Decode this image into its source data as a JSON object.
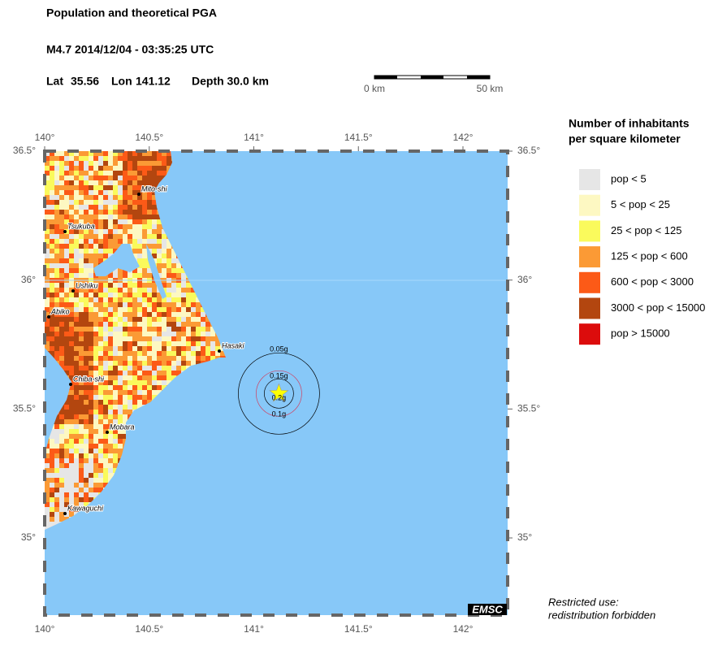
{
  "header": {
    "title": "Population and theoretical PGA",
    "event": "M4.7  2014/12/04 - 03:35:25 UTC",
    "lat_label": "Lat",
    "lat": 35.56,
    "lon_label": "Lon",
    "lon": 141.12,
    "depth": "Depth  30.0 km"
  },
  "scale_bar": {
    "start": "0 km",
    "end": "50 km"
  },
  "map": {
    "lon_ticks": [
      {
        "value": 140,
        "label": "140°"
      },
      {
        "value": 140.5,
        "label": "140.5°"
      },
      {
        "value": 141,
        "label": "141°"
      },
      {
        "value": 141.5,
        "label": "141.5°"
      },
      {
        "value": 142,
        "label": "142°"
      }
    ],
    "lat_ticks": [
      {
        "value": 36.5,
        "label": "36.5°"
      },
      {
        "value": 36,
        "label": "36°"
      },
      {
        "value": 35.5,
        "label": "35.5°"
      },
      {
        "value": 35,
        "label": "35°"
      }
    ],
    "cities": [
      "Mito-shi",
      "Tsukuba",
      "Ushiku",
      "Abiko",
      "Hasaki",
      "Chiba-shi",
      "Mobara",
      "Kawaguchi"
    ],
    "pga_labels": [
      "0.05g",
      "0.15g",
      "0.2g",
      "0.1g"
    ],
    "badge": "EMSC"
  },
  "legend": {
    "title": [
      "Number of inhabitants",
      "per square kilometer"
    ],
    "items": [
      {
        "label": "pop < 5",
        "color": "#e6e6e6"
      },
      {
        "label": "5 < pop < 25",
        "color": "#fdf8c2"
      },
      {
        "label": "25 < pop < 125",
        "color": "#fafa5c"
      },
      {
        "label": "125 < pop < 600",
        "color": "#fb9a35"
      },
      {
        "label": "600 < pop < 3000",
        "color": "#fc5a17"
      },
      {
        "label": "3000 < pop < 15000",
        "color": "#b3460f"
      },
      {
        "label": "pop > 15000",
        "color": "#dc0c0c"
      }
    ]
  },
  "footer": [
    "Restricted use:",
    "redistribution forbidden"
  ]
}
